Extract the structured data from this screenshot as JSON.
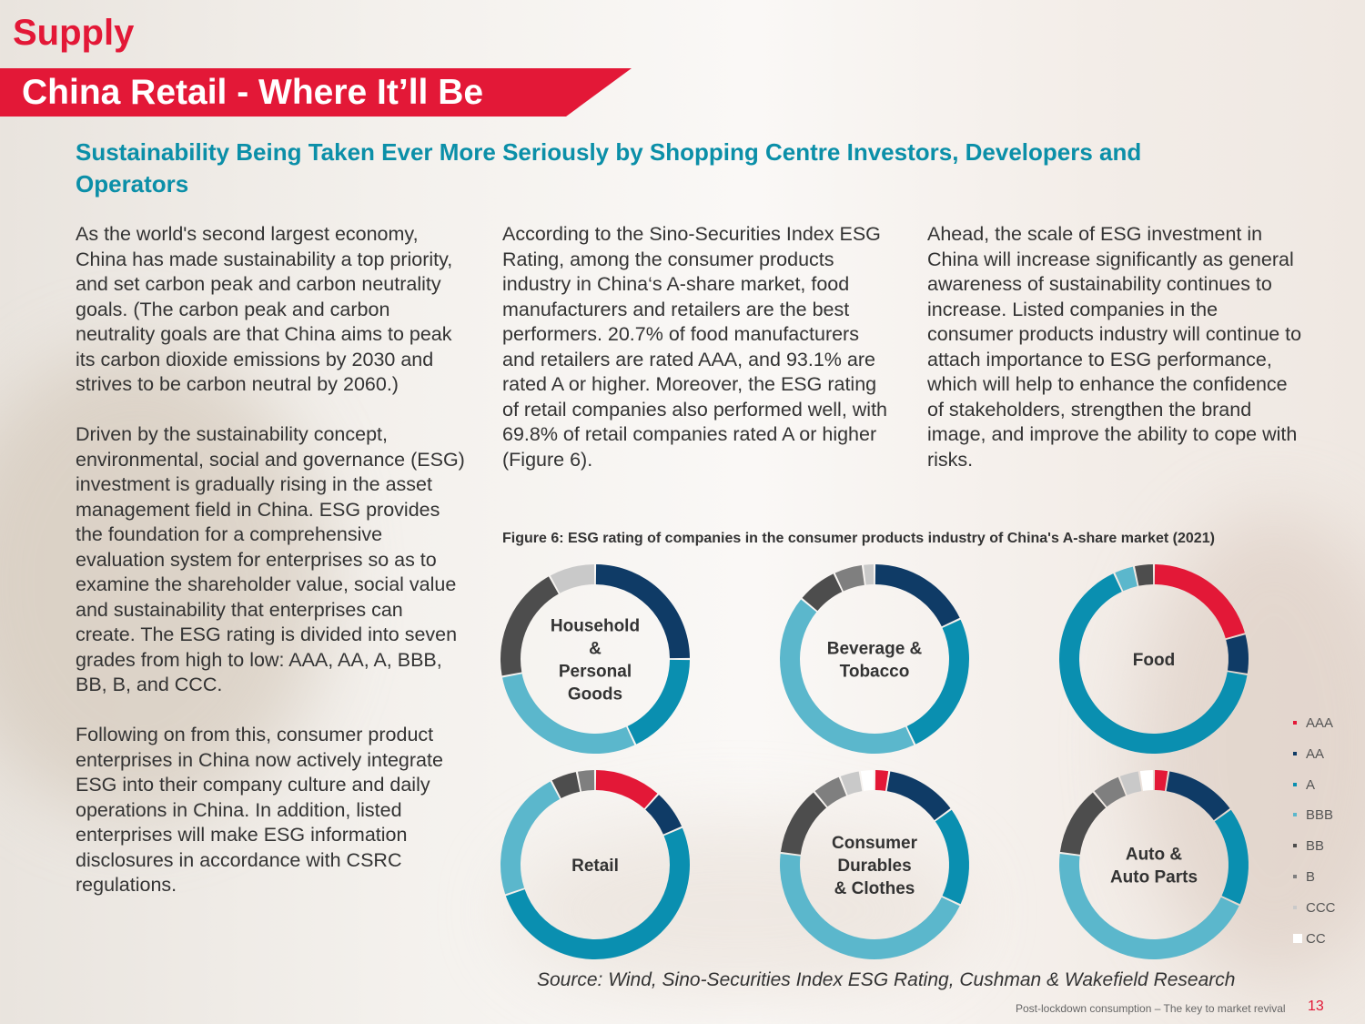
{
  "header": {
    "section": "Supply",
    "title": "China Retail - Where It’ll Be",
    "subtitle": "Sustainability Being Taken Ever More Seriously by Shopping Centre Investors, Developers and Operators"
  },
  "columns": {
    "col1": [
      "As the world's second largest economy, China has made sustainability a top priority, and set carbon peak and carbon neutrality goals. (The carbon peak and carbon neutrality goals are that China aims to peak its carbon dioxide emissions by 2030 and strives to be carbon neutral by 2060.)",
      "Driven by the sustainability concept, environmental, social and governance (ESG) investment is gradually rising in the asset management field in China. ESG provides the foundation for a comprehensive evaluation system for enterprises so as to examine the shareholder value, social value and sustainability that enterprises can create. The ESG rating is divided into seven grades from high to low: AAA, AA, A, BBB, BB, B, and CCC.",
      "Following on from this, consumer product enterprises in China now actively integrate ESG into their company culture and daily operations in China. In addition, listed enterprises will make ESG information disclosures in accordance with CSRC regulations."
    ],
    "col2": [
      "According to the Sino-Securities Index ESG Rating, among the consumer products industry in China‘s A-share market, food manufacturers and retailers are the best performers. 20.7% of food manufacturers and retailers are rated AAA, and 93.1% are rated A or higher. Moreover, the ESG rating of retail companies also performed well, with 69.8% of retail companies rated A or higher (Figure 6)."
    ],
    "col3": [
      "Ahead, the scale of ESG investment in China will increase significantly as general awareness of sustainability continues to increase. Listed companies in the consumer products industry will continue to attach importance to ESG performance, which will help to enhance the confidence of stakeholders, strengthen the brand image, and improve the ability to cope with risks."
    ]
  },
  "figure": {
    "caption": "Figure 6: ESG rating of companies in the consumer products industry of China's A-share market (2021)",
    "source": "Source: Wind, Sino-Securities Index ESG Rating, Cushman & Wakefield Research"
  },
  "chart_data": {
    "type": "pie",
    "variant": "donut",
    "title": "Figure 6: ESG rating of companies in the consumer products industry of China's A-share market (2021)",
    "categories": [
      "AAA",
      "AA",
      "A",
      "BBB",
      "BB",
      "B",
      "CCC",
      "CC"
    ],
    "colors": {
      "AAA": "#e31837",
      "AA": "#0f3b66",
      "A": "#0a8fb0",
      "BBB": "#5bb7cc",
      "BB": "#4d4d4d",
      "B": "#7f7f7f",
      "CCC": "#c9c9c9",
      "CC": "#ffffff"
    },
    "series": [
      {
        "name": "Household & Personal Goods",
        "label_lines": [
          "Household",
          "&",
          "Personal",
          "Goods"
        ],
        "values": [
          0,
          25,
          18,
          29,
          20,
          0,
          8,
          0
        ]
      },
      {
        "name": "Beverage & Tobacco",
        "label_lines": [
          "Beverage &",
          "Tobacco"
        ],
        "values": [
          0,
          18,
          25,
          43,
          7,
          5,
          2,
          0
        ]
      },
      {
        "name": "Food",
        "label_lines": [
          "Food"
        ],
        "values": [
          20.7,
          6.9,
          65.5,
          3.5,
          3.4,
          0,
          0,
          0
        ]
      },
      {
        "name": "Retail",
        "label_lines": [
          "Retail"
        ],
        "values": [
          11.6,
          6.9,
          51.3,
          22.5,
          4.6,
          3.1,
          0,
          0
        ]
      },
      {
        "name": "Consumer Durables & Clothes",
        "label_lines": [
          "Consumer",
          "Durables",
          "& Clothes"
        ],
        "values": [
          2.5,
          12.5,
          17,
          45,
          12,
          5,
          3.5,
          2.5
        ]
      },
      {
        "name": "Auto & Auto Parts",
        "label_lines": [
          "Auto &",
          "Auto Parts"
        ],
        "values": [
          2.5,
          12.5,
          17,
          45,
          12,
          5,
          3.5,
          2.5
        ]
      }
    ]
  },
  "footer": {
    "text": "Post-lockdown consumption – The key to market revival",
    "page": "13"
  }
}
